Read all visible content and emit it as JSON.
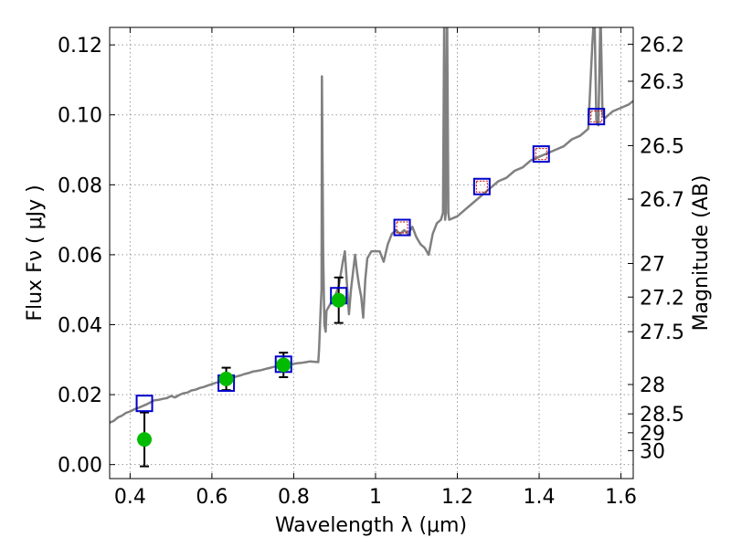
{
  "chart_data": {
    "type": "scatter",
    "xlabel": "Wavelength  λ (μm)",
    "ylabel": "Flux  Fν  ( μJy )",
    "y2label": "Magnitude (AB)",
    "xlim": [
      0.35,
      1.63
    ],
    "ylim": [
      -0.004,
      0.125
    ],
    "grid": true,
    "x_ticks": [
      {
        "value": 0.4,
        "label": "0.4"
      },
      {
        "value": 0.6,
        "label": "0.6"
      },
      {
        "value": 0.8,
        "label": "0.8"
      },
      {
        "value": 1.0,
        "label": "1"
      },
      {
        "value": 1.2,
        "label": "1.2"
      },
      {
        "value": 1.4,
        "label": "1.4"
      },
      {
        "value": 1.6,
        "label": "1.6"
      }
    ],
    "y_ticks": [
      {
        "value": 0.0,
        "label": "0.00"
      },
      {
        "value": 0.02,
        "label": "0.02"
      },
      {
        "value": 0.04,
        "label": "0.04"
      },
      {
        "value": 0.06,
        "label": "0.06"
      },
      {
        "value": 0.08,
        "label": "0.08"
      },
      {
        "value": 0.1,
        "label": "0.10"
      },
      {
        "value": 0.12,
        "label": "0.12"
      }
    ],
    "magnitude_ticks": [
      {
        "flux": 0.1202,
        "label": "26.2"
      },
      {
        "flux": 0.1096,
        "label": "26.3"
      },
      {
        "flux": 0.0912,
        "label": "26.5"
      },
      {
        "flux": 0.0759,
        "label": "26.7"
      },
      {
        "flux": 0.0575,
        "label": "27"
      },
      {
        "flux": 0.0479,
        "label": "27.2"
      },
      {
        "flux": 0.038,
        "label": "27.5"
      },
      {
        "flux": 0.0229,
        "label": "28"
      },
      {
        "flux": 0.0145,
        "label": "28.5"
      },
      {
        "flux": 0.0091,
        "label": "29"
      },
      {
        "flux": 0.004,
        "label": "30"
      }
    ],
    "series": [
      {
        "role": "model",
        "color": "#808080",
        "points": [
          [
            0.35,
            0.012
          ],
          [
            0.36,
            0.0125
          ],
          [
            0.37,
            0.0135
          ],
          [
            0.38,
            0.014
          ],
          [
            0.39,
            0.0148
          ],
          [
            0.4,
            0.0152
          ],
          [
            0.41,
            0.0158
          ],
          [
            0.42,
            0.0162
          ],
          [
            0.43,
            0.0167
          ],
          [
            0.44,
            0.0172
          ],
          [
            0.45,
            0.0178
          ],
          [
            0.46,
            0.0184
          ],
          [
            0.47,
            0.0185
          ],
          [
            0.48,
            0.0188
          ],
          [
            0.49,
            0.019
          ],
          [
            0.5,
            0.0196
          ],
          [
            0.51,
            0.0192
          ],
          [
            0.52,
            0.0199
          ],
          [
            0.53,
            0.0204
          ],
          [
            0.54,
            0.0206
          ],
          [
            0.55,
            0.0212
          ],
          [
            0.56,
            0.0214
          ],
          [
            0.57,
            0.0219
          ],
          [
            0.58,
            0.0222
          ],
          [
            0.59,
            0.0226
          ],
          [
            0.6,
            0.023
          ],
          [
            0.61,
            0.0234
          ],
          [
            0.62,
            0.0237
          ],
          [
            0.63,
            0.0241
          ],
          [
            0.64,
            0.0244
          ],
          [
            0.65,
            0.0248
          ],
          [
            0.66,
            0.0252
          ],
          [
            0.67,
            0.0255
          ],
          [
            0.68,
            0.0259
          ],
          [
            0.69,
            0.0262
          ],
          [
            0.7,
            0.0266
          ],
          [
            0.71,
            0.0268
          ],
          [
            0.72,
            0.027
          ],
          [
            0.73,
            0.0273
          ],
          [
            0.74,
            0.0276
          ],
          [
            0.75,
            0.0279
          ],
          [
            0.76,
            0.0281
          ],
          [
            0.77,
            0.0283
          ],
          [
            0.78,
            0.0285
          ],
          [
            0.79,
            0.0287
          ],
          [
            0.8,
            0.0288
          ],
          [
            0.81,
            0.029
          ],
          [
            0.82,
            0.0291
          ],
          [
            0.83,
            0.0293
          ],
          [
            0.84,
            0.0295
          ],
          [
            0.85,
            0.0294
          ],
          [
            0.86,
            0.0293
          ],
          [
            0.862,
            0.033
          ],
          [
            0.866,
            0.045
          ],
          [
            0.868,
            0.05
          ],
          [
            0.869,
            0.111
          ],
          [
            0.872,
            0.06
          ],
          [
            0.875,
            0.04
          ],
          [
            0.878,
            0.038
          ],
          [
            0.88,
            0.044
          ],
          [
            0.89,
            0.046
          ],
          [
            0.9,
            0.048
          ],
          [
            0.91,
            0.051
          ],
          [
            0.92,
            0.058
          ],
          [
            0.925,
            0.061
          ],
          [
            0.93,
            0.052
          ],
          [
            0.935,
            0.043
          ],
          [
            0.94,
            0.05
          ],
          [
            0.95,
            0.06
          ],
          [
            0.955,
            0.055
          ],
          [
            0.96,
            0.051
          ],
          [
            0.965,
            0.048
          ],
          [
            0.97,
            0.042
          ],
          [
            0.975,
            0.053
          ],
          [
            0.98,
            0.059
          ],
          [
            0.99,
            0.061
          ],
          [
            1.0,
            0.061
          ],
          [
            1.01,
            0.061
          ],
          [
            1.02,
            0.058
          ],
          [
            1.03,
            0.063
          ],
          [
            1.04,
            0.066
          ],
          [
            1.05,
            0.067
          ],
          [
            1.06,
            0.066
          ],
          [
            1.07,
            0.067
          ],
          [
            1.08,
            0.066
          ],
          [
            1.09,
            0.068
          ],
          [
            1.1,
            0.065
          ],
          [
            1.11,
            0.063
          ],
          [
            1.12,
            0.062
          ],
          [
            1.13,
            0.06
          ],
          [
            1.14,
            0.066
          ],
          [
            1.15,
            0.069
          ],
          [
            1.16,
            0.07
          ],
          [
            1.165,
            0.072
          ],
          [
            1.168,
            0.13
          ],
          [
            1.17,
            0.07
          ],
          [
            1.172,
            0.072
          ],
          [
            1.175,
            0.13
          ],
          [
            1.178,
            0.072
          ],
          [
            1.18,
            0.07
          ],
          [
            1.2,
            0.071
          ],
          [
            1.22,
            0.073
          ],
          [
            1.24,
            0.075
          ],
          [
            1.26,
            0.077
          ],
          [
            1.28,
            0.079
          ],
          [
            1.3,
            0.081
          ],
          [
            1.32,
            0.082
          ],
          [
            1.34,
            0.084
          ],
          [
            1.36,
            0.085
          ],
          [
            1.38,
            0.087
          ],
          [
            1.4,
            0.088
          ],
          [
            1.42,
            0.089
          ],
          [
            1.44,
            0.09
          ],
          [
            1.46,
            0.091
          ],
          [
            1.48,
            0.093
          ],
          [
            1.5,
            0.094
          ],
          [
            1.52,
            0.096
          ],
          [
            1.53,
            0.12
          ],
          [
            1.535,
            0.13
          ],
          [
            1.54,
            0.098
          ],
          [
            1.545,
            0.097
          ],
          [
            1.55,
            0.13
          ],
          [
            1.555,
            0.1
          ],
          [
            1.56,
            0.099
          ],
          [
            1.57,
            0.1
          ],
          [
            1.58,
            0.101
          ],
          [
            1.6,
            0.102
          ],
          [
            1.62,
            0.103
          ],
          [
            1.63,
            0.104
          ]
        ]
      },
      {
        "role": "model-photometry",
        "color": "#0000cc",
        "points": [
          [
            0.435,
            0.0175
          ],
          [
            0.635,
            0.0233
          ],
          [
            0.775,
            0.0287
          ],
          [
            0.91,
            0.0483
          ],
          [
            1.065,
            0.0678
          ],
          [
            1.26,
            0.0795
          ],
          [
            1.405,
            0.0888
          ],
          [
            1.54,
            0.0995
          ]
        ]
      },
      {
        "role": "observed-photometry",
        "color": "#00bb00",
        "points": [
          [
            0.435,
            0.0072
          ],
          [
            0.635,
            0.0245
          ],
          [
            0.775,
            0.0285
          ],
          [
            0.91,
            0.047
          ]
        ],
        "errors": [
          0.0077,
          0.0032,
          0.0035,
          0.0065
        ]
      },
      {
        "role": "upper-limits",
        "color": "#cc0000",
        "points": [
          [
            1.065,
            0.0678
          ],
          [
            1.26,
            0.0795
          ],
          [
            1.405,
            0.0888
          ],
          [
            1.54,
            0.0995
          ]
        ]
      }
    ]
  }
}
